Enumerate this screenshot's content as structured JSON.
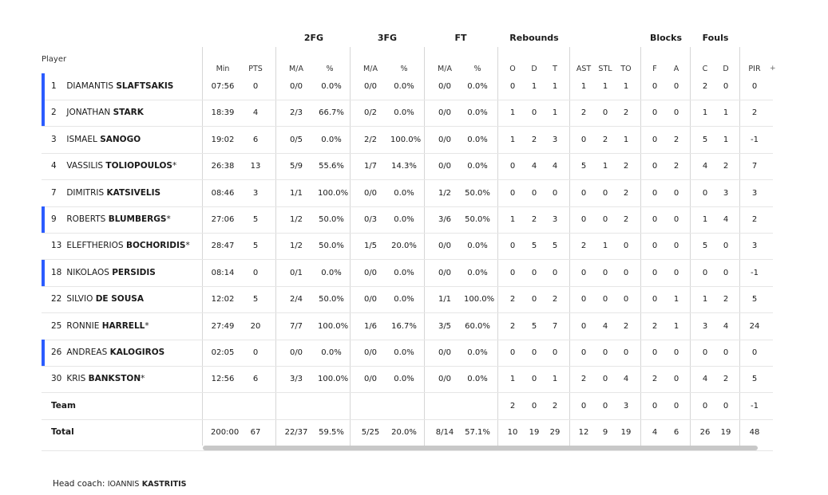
{
  "header": {
    "player": "Player",
    "groups": {
      "fg2": "2FG",
      "fg3": "3FG",
      "ft": "FT",
      "rebounds": "Rebounds",
      "blocks": "Blocks",
      "fouls": "Fouls"
    },
    "sub": {
      "min": "Min",
      "pts": "PTS",
      "fg2_ma": "M/A",
      "fg2_pct": "%",
      "fg3_ma": "M/A",
      "fg3_pct": "%",
      "ft_ma": "M/A",
      "ft_pct": "%",
      "o": "O",
      "d": "D",
      "t": "T",
      "ast": "AST",
      "stl": "STL",
      "to": "TO",
      "bf": "F",
      "ba": "A",
      "fc": "C",
      "fd": "D",
      "pir": "PIR"
    },
    "more": "+"
  },
  "players": [
    {
      "num": "1",
      "first": "DIAMANTIS",
      "last": "SLAFTSAKIS",
      "mark": "",
      "bar": true,
      "min": "07:56",
      "pts": "0",
      "fg2": "0/0",
      "fg2p": "0.0%",
      "fg3": "0/0",
      "fg3p": "0.0%",
      "ft": "0/0",
      "ftp": "0.0%",
      "o": "0",
      "d": "1",
      "t": "1",
      "ast": "1",
      "stl": "1",
      "to": "1",
      "bf": "0",
      "ba": "0",
      "fc": "2",
      "fd": "0",
      "pir": "0"
    },
    {
      "num": "2",
      "first": "JONATHAN",
      "last": "STARK",
      "mark": "",
      "bar": true,
      "min": "18:39",
      "pts": "4",
      "fg2": "2/3",
      "fg2p": "66.7%",
      "fg3": "0/2",
      "fg3p": "0.0%",
      "ft": "0/0",
      "ftp": "0.0%",
      "o": "1",
      "d": "0",
      "t": "1",
      "ast": "2",
      "stl": "0",
      "to": "2",
      "bf": "0",
      "ba": "0",
      "fc": "1",
      "fd": "1",
      "pir": "2"
    },
    {
      "num": "3",
      "first": "ISMAEL",
      "last": "SANOGO",
      "mark": "",
      "bar": false,
      "min": "19:02",
      "pts": "6",
      "fg2": "0/5",
      "fg2p": "0.0%",
      "fg3": "2/2",
      "fg3p": "100.0%",
      "ft": "0/0",
      "ftp": "0.0%",
      "o": "1",
      "d": "2",
      "t": "3",
      "ast": "0",
      "stl": "2",
      "to": "1",
      "bf": "0",
      "ba": "2",
      "fc": "5",
      "fd": "1",
      "pir": "-1"
    },
    {
      "num": "4",
      "first": "VASSILIS",
      "last": "TOLIOPOULOS",
      "mark": "*",
      "bar": false,
      "min": "26:38",
      "pts": "13",
      "fg2": "5/9",
      "fg2p": "55.6%",
      "fg3": "1/7",
      "fg3p": "14.3%",
      "ft": "0/0",
      "ftp": "0.0%",
      "o": "0",
      "d": "4",
      "t": "4",
      "ast": "5",
      "stl": "1",
      "to": "2",
      "bf": "0",
      "ba": "2",
      "fc": "4",
      "fd": "2",
      "pir": "7"
    },
    {
      "num": "7",
      "first": "DIMITRIS",
      "last": "KATSIVELIS",
      "mark": "",
      "bar": false,
      "min": "08:46",
      "pts": "3",
      "fg2": "1/1",
      "fg2p": "100.0%",
      "fg3": "0/0",
      "fg3p": "0.0%",
      "ft": "1/2",
      "ftp": "50.0%",
      "o": "0",
      "d": "0",
      "t": "0",
      "ast": "0",
      "stl": "0",
      "to": "2",
      "bf": "0",
      "ba": "0",
      "fc": "0",
      "fd": "3",
      "pir": "3"
    },
    {
      "num": "9",
      "first": "ROBERTS",
      "last": "BLUMBERGS",
      "mark": "*",
      "bar": true,
      "min": "27:06",
      "pts": "5",
      "fg2": "1/2",
      "fg2p": "50.0%",
      "fg3": "0/3",
      "fg3p": "0.0%",
      "ft": "3/6",
      "ftp": "50.0%",
      "o": "1",
      "d": "2",
      "t": "3",
      "ast": "0",
      "stl": "0",
      "to": "2",
      "bf": "0",
      "ba": "0",
      "fc": "1",
      "fd": "4",
      "pir": "2"
    },
    {
      "num": "13",
      "first": "ELEFTHERIOS",
      "last": "BOCHORIDIS",
      "mark": "*",
      "bar": false,
      "min": "28:47",
      "pts": "5",
      "fg2": "1/2",
      "fg2p": "50.0%",
      "fg3": "1/5",
      "fg3p": "20.0%",
      "ft": "0/0",
      "ftp": "0.0%",
      "o": "0",
      "d": "5",
      "t": "5",
      "ast": "2",
      "stl": "1",
      "to": "0",
      "bf": "0",
      "ba": "0",
      "fc": "5",
      "fd": "0",
      "pir": "3"
    },
    {
      "num": "18",
      "first": "NIKOLAOS",
      "last": "PERSIDIS",
      "mark": "",
      "bar": true,
      "min": "08:14",
      "pts": "0",
      "fg2": "0/1",
      "fg2p": "0.0%",
      "fg3": "0/0",
      "fg3p": "0.0%",
      "ft": "0/0",
      "ftp": "0.0%",
      "o": "0",
      "d": "0",
      "t": "0",
      "ast": "0",
      "stl": "0",
      "to": "0",
      "bf": "0",
      "ba": "0",
      "fc": "0",
      "fd": "0",
      "pir": "-1"
    },
    {
      "num": "22",
      "first": "SILVIO",
      "last": "DE SOUSA",
      "mark": "",
      "bar": false,
      "min": "12:02",
      "pts": "5",
      "fg2": "2/4",
      "fg2p": "50.0%",
      "fg3": "0/0",
      "fg3p": "0.0%",
      "ft": "1/1",
      "ftp": "100.0%",
      "o": "2",
      "d": "0",
      "t": "2",
      "ast": "0",
      "stl": "0",
      "to": "0",
      "bf": "0",
      "ba": "1",
      "fc": "1",
      "fd": "2",
      "pir": "5"
    },
    {
      "num": "25",
      "first": "RONNIE",
      "last": "HARRELL",
      "mark": "*",
      "bar": false,
      "min": "27:49",
      "pts": "20",
      "fg2": "7/7",
      "fg2p": "100.0%",
      "fg3": "1/6",
      "fg3p": "16.7%",
      "ft": "3/5",
      "ftp": "60.0%",
      "o": "2",
      "d": "5",
      "t": "7",
      "ast": "0",
      "stl": "4",
      "to": "2",
      "bf": "2",
      "ba": "1",
      "fc": "3",
      "fd": "4",
      "pir": "24"
    },
    {
      "num": "26",
      "first": "ANDREAS",
      "last": "KALOGIROS",
      "mark": "",
      "bar": true,
      "min": "02:05",
      "pts": "0",
      "fg2": "0/0",
      "fg2p": "0.0%",
      "fg3": "0/0",
      "fg3p": "0.0%",
      "ft": "0/0",
      "ftp": "0.0%",
      "o": "0",
      "d": "0",
      "t": "0",
      "ast": "0",
      "stl": "0",
      "to": "0",
      "bf": "0",
      "ba": "0",
      "fc": "0",
      "fd": "0",
      "pir": "0"
    },
    {
      "num": "30",
      "first": "KRIS",
      "last": "BANKSTON",
      "mark": "*",
      "bar": false,
      "min": "12:56",
      "pts": "6",
      "fg2": "3/3",
      "fg2p": "100.0%",
      "fg3": "0/0",
      "fg3p": "0.0%",
      "ft": "0/0",
      "ftp": "0.0%",
      "o": "1",
      "d": "0",
      "t": "1",
      "ast": "2",
      "stl": "0",
      "to": "4",
      "bf": "2",
      "ba": "0",
      "fc": "4",
      "fd": "2",
      "pir": "5"
    }
  ],
  "team": {
    "label": "Team",
    "min": "",
    "pts": "",
    "fg2": "",
    "fg2p": "",
    "fg3": "",
    "fg3p": "",
    "ft": "",
    "ftp": "",
    "o": "2",
    "d": "0",
    "t": "2",
    "ast": "0",
    "stl": "0",
    "to": "3",
    "bf": "0",
    "ba": "0",
    "fc": "0",
    "fd": "0",
    "pir": "-1"
  },
  "total": {
    "label": "Total",
    "min": "200:00",
    "pts": "67",
    "fg2": "22/37",
    "fg2p": "59.5%",
    "fg3": "5/25",
    "fg3p": "20.0%",
    "ft": "8/14",
    "ftp": "57.1%",
    "o": "10",
    "d": "19",
    "t": "29",
    "ast": "12",
    "stl": "9",
    "to": "19",
    "bf": "4",
    "ba": "6",
    "fc": "26",
    "fd": "19",
    "pir": "48"
  },
  "coach": {
    "label": "Head coach:",
    "first": "IOANNIS",
    "last": "KASTRITIS"
  },
  "colors": {
    "accent_bar": "#2b5cff",
    "divider": "#d6d6d6",
    "scrollbar": "#c8c8c8"
  }
}
